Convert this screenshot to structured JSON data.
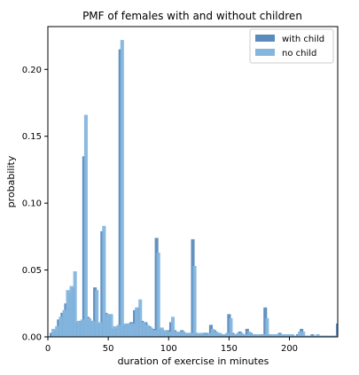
{
  "chart_data": {
    "type": "bar",
    "title": "PMF of females with and without children",
    "xlabel": "duration of exercise in minutes",
    "ylabel": "probability",
    "xlim": [
      0,
      240
    ],
    "ylim": [
      0,
      0.232
    ],
    "xticks": [
      0,
      50,
      100,
      150,
      200
    ],
    "yticks": [
      0.0,
      0.05,
      0.1,
      0.15,
      0.2
    ],
    "ytick_labels": [
      "0.00",
      "0.05",
      "0.10",
      "0.15",
      "0.20"
    ],
    "grid": false,
    "legend_position": "top-right",
    "bar_width": 3,
    "series": [
      {
        "name": "with child",
        "color": "#5b8bbd",
        "opacity": 0.95,
        "points": [
          [
            3,
            0.003
          ],
          [
            6,
            0.005
          ],
          [
            9,
            0.013
          ],
          [
            12,
            0.018
          ],
          [
            15,
            0.025
          ],
          [
            18,
            0.033
          ],
          [
            21,
            0.037
          ],
          [
            24,
            0.011
          ],
          [
            27,
            0.012
          ],
          [
            30,
            0.135
          ],
          [
            33,
            0.015
          ],
          [
            36,
            0.012
          ],
          [
            39,
            0.037
          ],
          [
            42,
            0.01
          ],
          [
            45,
            0.079
          ],
          [
            48,
            0.018
          ],
          [
            51,
            0.017
          ],
          [
            54,
            0.006
          ],
          [
            57,
            0.007
          ],
          [
            60,
            0.215
          ],
          [
            63,
            0.009
          ],
          [
            66,
            0.01
          ],
          [
            69,
            0.011
          ],
          [
            72,
            0.02
          ],
          [
            75,
            0.022
          ],
          [
            78,
            0.012
          ],
          [
            81,
            0.011
          ],
          [
            84,
            0.008
          ],
          [
            87,
            0.006
          ],
          [
            90,
            0.074
          ],
          [
            93,
            0.006
          ],
          [
            96,
            0.005
          ],
          [
            99,
            0.005
          ],
          [
            102,
            0.011
          ],
          [
            105,
            0.005
          ],
          [
            108,
            0.003
          ],
          [
            111,
            0.005
          ],
          [
            114,
            0.003
          ],
          [
            117,
            0.003
          ],
          [
            120,
            0.073
          ],
          [
            123,
            0.003
          ],
          [
            126,
            0.002
          ],
          [
            129,
            0.003
          ],
          [
            132,
            0.003
          ],
          [
            135,
            0.009
          ],
          [
            138,
            0.005
          ],
          [
            141,
            0.003
          ],
          [
            144,
            0.002
          ],
          [
            147,
            0.002
          ],
          [
            150,
            0.017
          ],
          [
            153,
            0.003
          ],
          [
            156,
            0.002
          ],
          [
            159,
            0.004
          ],
          [
            162,
            0.002
          ],
          [
            165,
            0.006
          ],
          [
            168,
            0.003
          ],
          [
            171,
            0.002
          ],
          [
            174,
            0.001
          ],
          [
            177,
            0.002
          ],
          [
            180,
            0.022
          ],
          [
            183,
            0.002
          ],
          [
            186,
            0.001
          ],
          [
            189,
            0.001
          ],
          [
            192,
            0.003
          ],
          [
            195,
            0.001
          ],
          [
            198,
            0.001
          ],
          [
            201,
            0.001
          ],
          [
            204,
            0.001
          ],
          [
            207,
            0.002
          ],
          [
            210,
            0.006
          ],
          [
            213,
            0.001
          ],
          [
            216,
            0.001
          ],
          [
            219,
            0.002
          ],
          [
            222,
            0.001
          ],
          [
            225,
            0.001
          ],
          [
            228,
            0.001
          ],
          [
            231,
            0.001
          ],
          [
            234,
            0.001
          ],
          [
            237,
            0.001
          ],
          [
            240,
            0.01
          ]
        ]
      },
      {
        "name": "no child",
        "color": "#84b6de",
        "opacity": 0.95,
        "points": [
          [
            4.5,
            0.006
          ],
          [
            7.5,
            0.008
          ],
          [
            10.5,
            0.015
          ],
          [
            13.5,
            0.02
          ],
          [
            16.5,
            0.035
          ],
          [
            19.5,
            0.038
          ],
          [
            22.5,
            0.049
          ],
          [
            25.5,
            0.012
          ],
          [
            28.5,
            0.013
          ],
          [
            31.5,
            0.166
          ],
          [
            34.5,
            0.014
          ],
          [
            37.5,
            0.012
          ],
          [
            40.5,
            0.035
          ],
          [
            43.5,
            0.011
          ],
          [
            46.5,
            0.083
          ],
          [
            49.5,
            0.017
          ],
          [
            52.5,
            0.017
          ],
          [
            55.5,
            0.008
          ],
          [
            58.5,
            0.009
          ],
          [
            61.5,
            0.222
          ],
          [
            64.5,
            0.01
          ],
          [
            67.5,
            0.01
          ],
          [
            70.5,
            0.01
          ],
          [
            73.5,
            0.022
          ],
          [
            76.5,
            0.028
          ],
          [
            79.5,
            0.011
          ],
          [
            82.5,
            0.009
          ],
          [
            85.5,
            0.007
          ],
          [
            88.5,
            0.005
          ],
          [
            91.5,
            0.063
          ],
          [
            94.5,
            0.007
          ],
          [
            97.5,
            0.005
          ],
          [
            100.5,
            0.004
          ],
          [
            103.5,
            0.015
          ],
          [
            106.5,
            0.004
          ],
          [
            109.5,
            0.004
          ],
          [
            112.5,
            0.004
          ],
          [
            115.5,
            0.003
          ],
          [
            118.5,
            0.003
          ],
          [
            121.5,
            0.053
          ],
          [
            124.5,
            0.003
          ],
          [
            127.5,
            0.003
          ],
          [
            130.5,
            0.002
          ],
          [
            133.5,
            0.003
          ],
          [
            136.5,
            0.006
          ],
          [
            139.5,
            0.004
          ],
          [
            142.5,
            0.003
          ],
          [
            145.5,
            0.002
          ],
          [
            148.5,
            0.003
          ],
          [
            151.5,
            0.014
          ],
          [
            154.5,
            0.002
          ],
          [
            157.5,
            0.003
          ],
          [
            160.5,
            0.003
          ],
          [
            163.5,
            0.002
          ],
          [
            166.5,
            0.004
          ],
          [
            169.5,
            0.002
          ],
          [
            172.5,
            0.002
          ],
          [
            175.5,
            0.002
          ],
          [
            178.5,
            0.002
          ],
          [
            181.5,
            0.014
          ],
          [
            184.5,
            0.002
          ],
          [
            187.5,
            0.002
          ],
          [
            190.5,
            0.002
          ],
          [
            193.5,
            0.002
          ],
          [
            196.5,
            0.002
          ],
          [
            199.5,
            0.002
          ],
          [
            202.5,
            0.002
          ],
          [
            205.5,
            0.001
          ],
          [
            208.5,
            0.004
          ],
          [
            211.5,
            0.004
          ],
          [
            214.5,
            0.001
          ],
          [
            217.5,
            0.001
          ],
          [
            220.5,
            0.001
          ],
          [
            223.5,
            0.002
          ],
          [
            226.5,
            0.001
          ],
          [
            229.5,
            0.001
          ],
          [
            232.5,
            0.001
          ],
          [
            235.5,
            0.001
          ],
          [
            238.5,
            0.001
          ]
        ]
      }
    ]
  }
}
